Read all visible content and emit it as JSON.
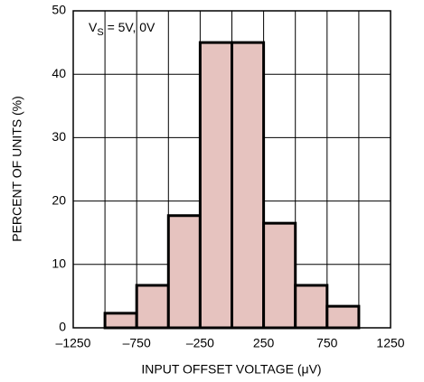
{
  "chart_data": {
    "type": "histogram",
    "xlabel": "INPUT OFFSET VOLTAGE (μV)",
    "ylabel": "PERCENT OF UNITS (%)",
    "annotation": {
      "main": "V",
      "sub": "S",
      "rest": " = 5V, 0V"
    },
    "bins": [
      -1000,
      -750,
      -500,
      -250,
      0,
      250,
      500,
      750,
      1000
    ],
    "counts": [
      2.3,
      6.7,
      17.7,
      45,
      45,
      16.5,
      6.7,
      3.4
    ],
    "color": "#e6c3bf",
    "edgecolor": "#000000",
    "xlim": [
      -1250,
      1250
    ],
    "xticks": [
      {
        "value": -1250,
        "label": "–1250"
      },
      {
        "value": -750,
        "label": "–750"
      },
      {
        "value": -250,
        "label": "–250"
      },
      250,
      750,
      1250
    ],
    "xminor": [
      -1000,
      -500,
      0,
      500,
      1000
    ],
    "ylim": [
      0,
      50
    ],
    "yticks": [
      0,
      10,
      20,
      30,
      40,
      50
    ],
    "grid": true
  }
}
